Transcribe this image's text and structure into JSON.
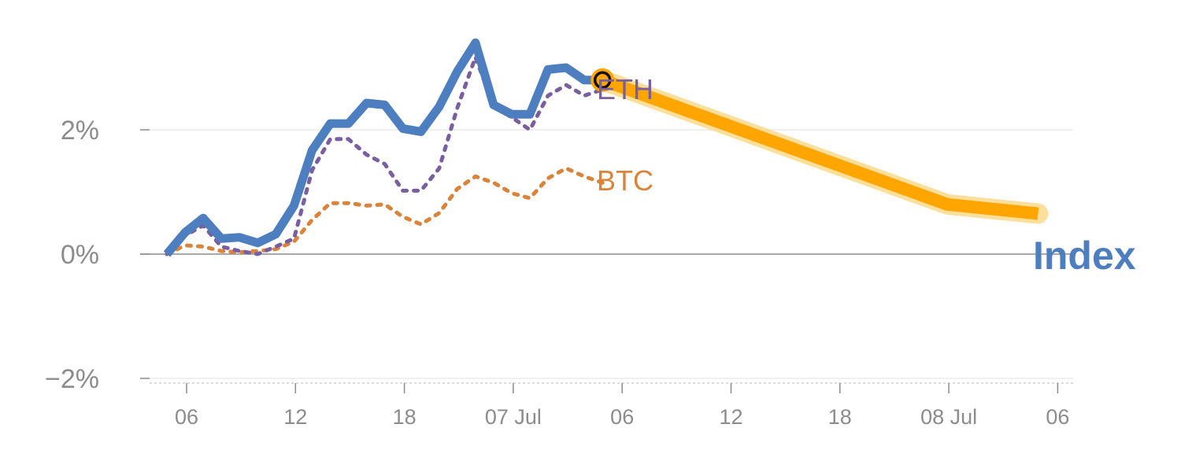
{
  "chart_data": {
    "type": "line",
    "title": "",
    "xlabel": "",
    "ylabel": "",
    "x_ticks": [
      "06",
      "12",
      "18",
      "07 Jul",
      "06",
      "12",
      "18",
      "08 Jul",
      "06"
    ],
    "y_ticks": [
      "−2%",
      "0%",
      "2%"
    ],
    "ylim": [
      -2.1,
      3.5
    ],
    "grid": true,
    "colors": {
      "index": "#4d7ebf",
      "eth": "#7a5fa0",
      "btc": "#d9843a",
      "projection": "#ffa500",
      "projection_halo": "#fbd98a",
      "marker_ring": "#ffa500",
      "axis": "#8c8c8c",
      "grid": "#e6e6e6"
    },
    "series": [
      {
        "name": "Index",
        "style": "solid",
        "points": [
          [
            0,
            0
          ],
          [
            1,
            0.35
          ],
          [
            2,
            0.58
          ],
          [
            3,
            0.25
          ],
          [
            4,
            0.27
          ],
          [
            5,
            0.18
          ],
          [
            6,
            0.32
          ],
          [
            7,
            0.78
          ],
          [
            8,
            1.67
          ],
          [
            9,
            2.1
          ],
          [
            10,
            2.1
          ],
          [
            11,
            2.43
          ],
          [
            12,
            2.4
          ],
          [
            13,
            2.02
          ],
          [
            14,
            1.97
          ],
          [
            15,
            2.37
          ],
          [
            16,
            2.94
          ],
          [
            17,
            3.4
          ],
          [
            18,
            2.4
          ],
          [
            19,
            2.25
          ],
          [
            20,
            2.25
          ],
          [
            21,
            2.97
          ],
          [
            22,
            3.0
          ],
          [
            23,
            2.8
          ],
          [
            24,
            2.8
          ]
        ]
      },
      {
        "name": "ETH",
        "style": "dotted",
        "points": [
          [
            0,
            0
          ],
          [
            1,
            0.3
          ],
          [
            2,
            0.46
          ],
          [
            3,
            0.12
          ],
          [
            4,
            0.05
          ],
          [
            5,
            0.0
          ],
          [
            6,
            0.12
          ],
          [
            7,
            0.25
          ],
          [
            8,
            1.35
          ],
          [
            9,
            1.85
          ],
          [
            10,
            1.85
          ],
          [
            11,
            1.6
          ],
          [
            12,
            1.45
          ],
          [
            13,
            1.02
          ],
          [
            14,
            1.02
          ],
          [
            15,
            1.38
          ],
          [
            16,
            2.35
          ],
          [
            17,
            3.17
          ],
          [
            18,
            2.38
          ],
          [
            19,
            2.2
          ],
          [
            20,
            2.0
          ],
          [
            21,
            2.55
          ],
          [
            22,
            2.72
          ],
          [
            23,
            2.55
          ],
          [
            24,
            2.65
          ]
        ]
      },
      {
        "name": "BTC",
        "style": "dotted",
        "points": [
          [
            0,
            0
          ],
          [
            1,
            0.14
          ],
          [
            2,
            0.12
          ],
          [
            3,
            0.05
          ],
          [
            4,
            0.03
          ],
          [
            5,
            0.05
          ],
          [
            6,
            0.08
          ],
          [
            7,
            0.2
          ],
          [
            8,
            0.55
          ],
          [
            9,
            0.82
          ],
          [
            10,
            0.82
          ],
          [
            11,
            0.78
          ],
          [
            12,
            0.8
          ],
          [
            13,
            0.6
          ],
          [
            14,
            0.48
          ],
          [
            15,
            0.66
          ],
          [
            16,
            1.05
          ],
          [
            17,
            1.25
          ],
          [
            18,
            1.15
          ],
          [
            19,
            0.98
          ],
          [
            20,
            0.9
          ],
          [
            21,
            1.22
          ],
          [
            22,
            1.38
          ],
          [
            23,
            1.25
          ],
          [
            24,
            1.15
          ]
        ]
      }
    ],
    "projection": {
      "name": "Index",
      "points": [
        [
          24,
          2.8
        ],
        [
          43,
          0.8
        ],
        [
          48,
          0.65
        ]
      ]
    },
    "current_marker": {
      "x": 24,
      "y": 2.8
    },
    "labels": {
      "eth": "ETH",
      "btc": "BTC",
      "index": "Index"
    }
  }
}
